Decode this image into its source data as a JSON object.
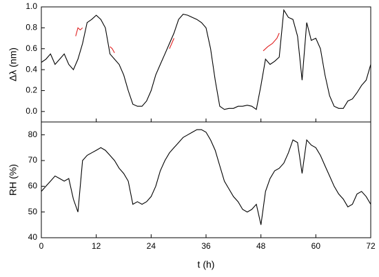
{
  "chart_data": [
    {
      "type": "line",
      "ylabel": "Δλ (nm)",
      "xlim": [
        0,
        72
      ],
      "xticks": [
        0,
        12,
        24,
        36,
        48,
        60,
        72
      ],
      "ylim": [
        -0.1,
        1.0
      ],
      "yticks": [
        {
          "value": 0,
          "label": "0.0"
        },
        0.2,
        0.4,
        0.6,
        0.8,
        {
          "value": 1,
          "label": "1.0"
        }
      ],
      "x": [
        0,
        1,
        2,
        3,
        4,
        5,
        6,
        7,
        8,
        9,
        10,
        11,
        12,
        13,
        14,
        15,
        16,
        17,
        18,
        19,
        20,
        21,
        22,
        23,
        24,
        25,
        26,
        27,
        28,
        29,
        30,
        31,
        32,
        33,
        34,
        35,
        36,
        37,
        38,
        39,
        40,
        41,
        42,
        43,
        44,
        45,
        46,
        47,
        48,
        49,
        50,
        51,
        52,
        53,
        54,
        55,
        56,
        57,
        58,
        59,
        60,
        61,
        62,
        63,
        64,
        65,
        66,
        67,
        68,
        69,
        70,
        71,
        72
      ],
      "series": [
        {
          "color": "#000000",
          "x": [
            0,
            1,
            2,
            3,
            4,
            5,
            6,
            7,
            8,
            9,
            10,
            11,
            12,
            13,
            14,
            15,
            16,
            17,
            18,
            19,
            20,
            21,
            22,
            23,
            24,
            25,
            26,
            27,
            28,
            29,
            30,
            31,
            32,
            33,
            34,
            35,
            36,
            37,
            38,
            39,
            40,
            41,
            42,
            43,
            44,
            45,
            46,
            47,
            48,
            49,
            50,
            51,
            52,
            53,
            54,
            55,
            56,
            57,
            58,
            59,
            60,
            61,
            62,
            63,
            64,
            65,
            66,
            67,
            68,
            69,
            70,
            71,
            72
          ],
          "values": [
            0.47,
            0.5,
            0.55,
            0.45,
            0.5,
            0.55,
            0.45,
            0.4,
            0.5,
            0.65,
            0.85,
            0.88,
            0.92,
            0.88,
            0.8,
            0.55,
            0.5,
            0.45,
            0.35,
            0.2,
            0.07,
            0.05,
            0.05,
            0.1,
            0.2,
            0.35,
            0.45,
            0.55,
            0.65,
            0.75,
            0.88,
            0.93,
            0.92,
            0.9,
            0.88,
            0.85,
            0.8,
            0.6,
            0.3,
            0.05,
            0.02,
            0.03,
            0.03,
            0.05,
            0.05,
            0.06,
            0.05,
            0.02,
            0.25,
            0.5,
            0.45,
            0.48,
            0.52,
            0.97,
            0.9,
            0.88,
            0.72,
            0.3,
            0.85,
            0.68,
            0.7,
            0.6,
            0.35,
            0.15,
            0.05,
            0.03,
            0.03,
            0.1,
            0.12,
            0.18,
            0.25,
            0.3,
            0.45
          ]
        },
        {
          "color": "#e02020",
          "x": [
            7.5,
            8,
            8.5,
            9
          ],
          "values": [
            0.72,
            0.8,
            0.78,
            0.8
          ]
        },
        {
          "color": "#e02020",
          "x": [
            15,
            15.5,
            16
          ],
          "values": [
            0.62,
            0.6,
            0.56
          ]
        },
        {
          "color": "#e02020",
          "x": [
            28,
            28.5,
            29
          ],
          "values": [
            0.6,
            0.65,
            0.7
          ]
        },
        {
          "color": "#e02020",
          "x": [
            48.5,
            49.5,
            50.5,
            51.5,
            52
          ],
          "values": [
            0.58,
            0.62,
            0.65,
            0.7,
            0.75
          ]
        }
      ]
    },
    {
      "type": "line",
      "ylabel": "RH (%)",
      "xlabel": "t (h)",
      "xlim": [
        0,
        72
      ],
      "xticks": [
        0,
        12,
        24,
        36,
        48,
        60,
        72
      ],
      "ylim": [
        40,
        85
      ],
      "yticks": [
        40,
        50,
        60,
        70,
        80
      ],
      "series": [
        {
          "color": "#000000",
          "x": [
            0,
            1,
            2,
            3,
            4,
            5,
            6,
            7,
            8,
            9,
            10,
            11,
            12,
            13,
            14,
            15,
            16,
            17,
            18,
            19,
            20,
            21,
            22,
            23,
            24,
            25,
            26,
            27,
            28,
            29,
            30,
            31,
            32,
            33,
            34,
            35,
            36,
            37,
            38,
            39,
            40,
            41,
            42,
            43,
            44,
            45,
            46,
            47,
            48,
            49,
            50,
            51,
            52,
            53,
            54,
            55,
            56,
            57,
            58,
            59,
            60,
            61,
            62,
            63,
            64,
            65,
            66,
            67,
            68,
            69,
            70,
            71,
            72
          ],
          "values": [
            58,
            60,
            62,
            64,
            63,
            62,
            63,
            55,
            50,
            70,
            72,
            73,
            74,
            75,
            74,
            72,
            70,
            67,
            65,
            62,
            53,
            54,
            53,
            54,
            56,
            60,
            66,
            70,
            73,
            75,
            77,
            79,
            80,
            81,
            82,
            82,
            81,
            78,
            74,
            68,
            62,
            59,
            56,
            54,
            51,
            50,
            51,
            53,
            45,
            58,
            63,
            66,
            67,
            69,
            73,
            78,
            77,
            65,
            78,
            76,
            75,
            72,
            68,
            64,
            60,
            57,
            55,
            52,
            53,
            57,
            58,
            56,
            53
          ]
        }
      ]
    }
  ]
}
